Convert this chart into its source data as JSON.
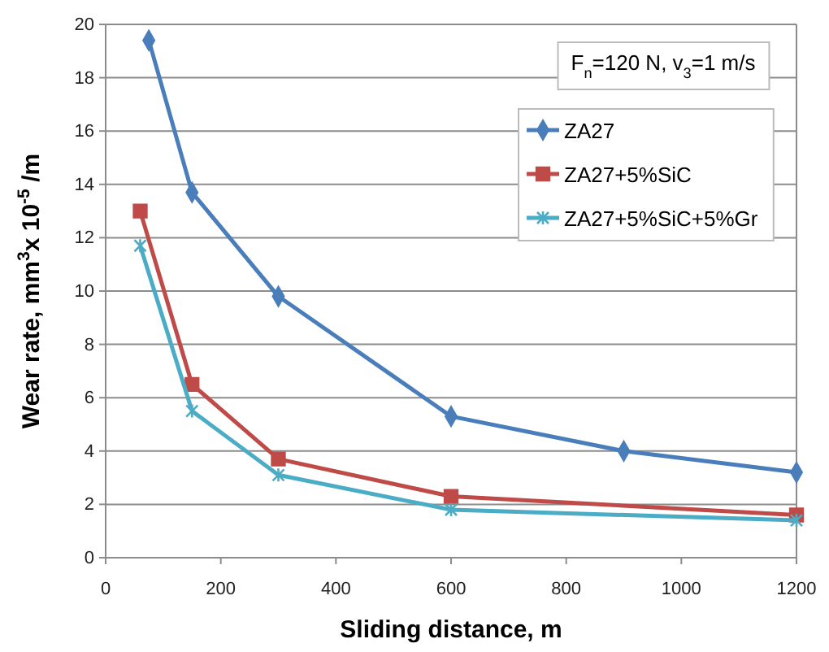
{
  "chart_data": {
    "type": "line",
    "xlabel": "Sliding distance,  m",
    "ylabel": "Wear rate,  mm$^{3}$x 10$^{-5}$ /m",
    "annotations": [
      "F$_{n}$=120 N,  v$_{3}$=1 m/s"
    ],
    "xlim": [
      0,
      1200
    ],
    "xticks": [
      0,
      200,
      400,
      600,
      800,
      1000,
      1200
    ],
    "ylim": [
      0,
      20
    ],
    "yticks": [
      0,
      2,
      4,
      6,
      8,
      10,
      12,
      14,
      16,
      18,
      20
    ],
    "grid": "y",
    "legend": "top right",
    "line_style": "solid",
    "series": [
      {
        "name": "ZA27",
        "color": "#4a7ebb",
        "marker": "diamond",
        "x": [
          75,
          150,
          300,
          600,
          900,
          1200
        ],
        "values": [
          19.4,
          13.7,
          9.8,
          5.3,
          4.0,
          3.2
        ]
      },
      {
        "name": "ZA27+5%SiC",
        "color": "#be4b48",
        "marker": "square",
        "x": [
          60,
          150,
          300,
          600,
          1200
        ],
        "values": [
          13,
          6.5,
          3.7,
          2.3,
          1.6
        ]
      },
      {
        "name": "ZA27+5%SiC+5%Gr",
        "color": "#4bacc6",
        "marker": "cross",
        "x": [
          60,
          150,
          300,
          600,
          1200
        ],
        "values": [
          11.7,
          5.5,
          3.1,
          1.8,
          1.4
        ]
      }
    ]
  }
}
